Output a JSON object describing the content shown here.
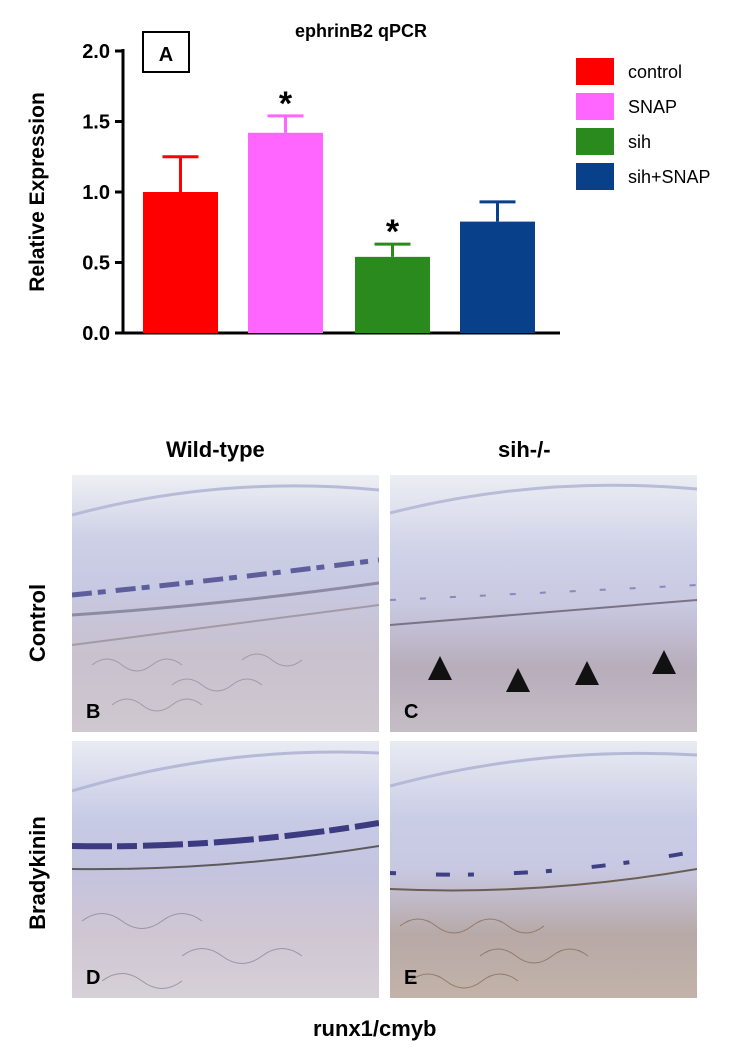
{
  "chart_data": {
    "type": "bar",
    "panel_label": "A",
    "title": "ephrinB2 qPCR",
    "ylabel": "Relative Expression",
    "xlabel": "",
    "ylim": [
      0,
      2.0
    ],
    "yticks": [
      "0.0",
      "0.5",
      "1.0",
      "1.5",
      "2.0"
    ],
    "categories": [
      "control",
      "SNAP",
      "sih",
      "sih+SNAP"
    ],
    "values": [
      1.0,
      1.42,
      0.54,
      0.79
    ],
    "errors": [
      0.25,
      0.12,
      0.09,
      0.14
    ],
    "colors": [
      "#ff0000",
      "#ff66ff",
      "#2b8a1e",
      "#08408a"
    ],
    "significance": [
      "",
      "*",
      "*",
      ""
    ],
    "legend_position": "top-right",
    "legend": [
      "control",
      "SNAP",
      "sih",
      "sih+SNAP"
    ]
  },
  "figure": {
    "columns": [
      "Wild-type",
      "sih-/-"
    ],
    "rows": [
      "Control",
      "Bradykinin"
    ],
    "panels": [
      {
        "letter": "B",
        "column": "Wild-type",
        "row": "Control",
        "arrowheads": 0
      },
      {
        "letter": "C",
        "column": "sih-/-",
        "row": "Control",
        "arrowheads": 4
      },
      {
        "letter": "D",
        "column": "Wild-type",
        "row": "Bradykinin",
        "arrowheads": 0
      },
      {
        "letter": "E",
        "column": "sih-/-",
        "row": "Bradykinin",
        "arrowheads": 0
      }
    ],
    "caption": "runx1/cmyb"
  }
}
